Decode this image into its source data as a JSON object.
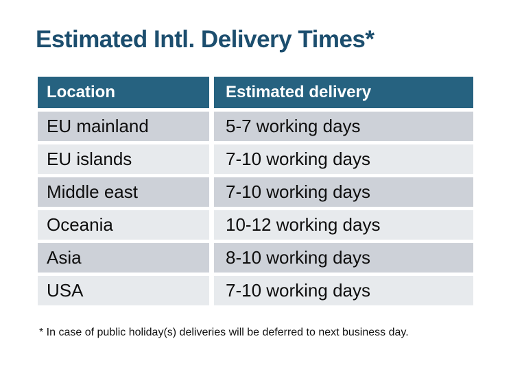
{
  "title": "Estimated Intl. Delivery Times*",
  "table": {
    "headers": [
      "Location",
      "Estimated delivery"
    ],
    "rows": [
      {
        "location": "EU mainland",
        "delivery": "5-7 working days"
      },
      {
        "location": "EU islands",
        "delivery": "7-10 working days"
      },
      {
        "location": "Middle east",
        "delivery": "7-10 working days"
      },
      {
        "location": "Oceania",
        "delivery": "10-12 working days"
      },
      {
        "location": "Asia",
        "delivery": "8-10 working days"
      },
      {
        "location": "USA",
        "delivery": "7-10 working days"
      }
    ]
  },
  "footnote": "* In case of public holiday(s) deliveries will be deferred to next business day.",
  "colors": {
    "title_text": "#1c4e6e",
    "header_bg": "#266280",
    "header_text": "#ffffff",
    "row_odd_bg": "#cdd1d8",
    "row_even_bg": "#e7eaed",
    "body_text": "#0e0e0e",
    "page_bg": "#ffffff"
  },
  "chart_data": {
    "type": "table",
    "title": "Estimated Intl. Delivery Times*",
    "columns": [
      "Location",
      "Estimated delivery"
    ],
    "rows": [
      [
        "EU mainland",
        "5-7 working days"
      ],
      [
        "EU islands",
        "7-10 working days"
      ],
      [
        "Middle east",
        "7-10 working days"
      ],
      [
        "Oceania",
        "10-12 working days"
      ],
      [
        "Asia",
        "8-10 working days"
      ],
      [
        "USA",
        "7-10 working days"
      ]
    ],
    "footnote": "* In case of public holiday(s) deliveries will be deferred to next business day.",
    "layout_hints": {
      "header_style": "dark-teal band, white bold text",
      "row_striping": "alternating gray (#cdd1d8) and light gray (#e7eaed)",
      "cell_gaps": "white gaps between all cells"
    }
  }
}
